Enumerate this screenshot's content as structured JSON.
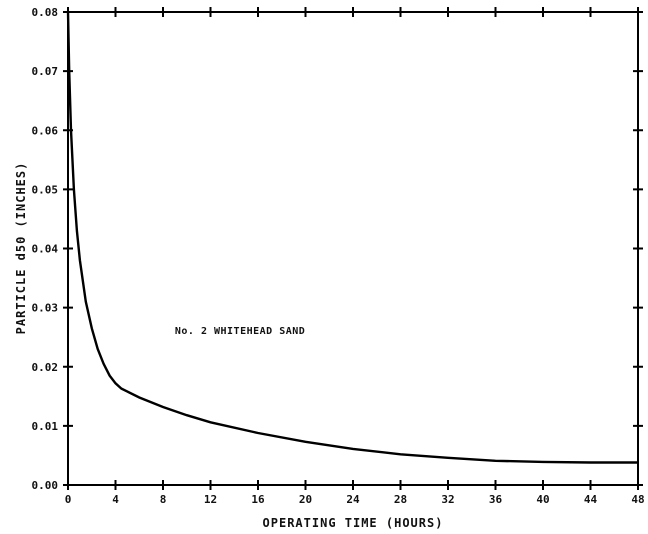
{
  "chart_data": {
    "type": "line",
    "title": "",
    "xlabel": "OPERATING TIME (HOURS)",
    "ylabel": "PARTICLE d50 (INCHES)",
    "xlim": [
      0,
      48
    ],
    "ylim": [
      0,
      0.08
    ],
    "x_ticks": [
      0,
      4,
      8,
      12,
      16,
      20,
      24,
      28,
      32,
      36,
      40,
      44,
      48
    ],
    "x_tick_labels": [
      "0",
      "4",
      "8",
      "12",
      "16",
      "20",
      "24",
      "28",
      "32",
      "36",
      "40",
      "44",
      "48"
    ],
    "y_ticks": [
      0,
      0.01,
      0.02,
      0.03,
      0.04,
      0.05,
      0.06,
      0.07,
      0.08
    ],
    "y_tick_labels": [
      "0.00",
      "0.01",
      "0.02",
      "0.03",
      "0.04",
      "0.05",
      "0.06",
      "0.07",
      "0.08"
    ],
    "grid": false,
    "line_color": "#000000",
    "series": [
      {
        "x": [
          0,
          0.1,
          0.25,
          0.5,
          0.75,
          1,
          1.5,
          2,
          2.5,
          3,
          3.5,
          4,
          4.5,
          5,
          6,
          8,
          10,
          12,
          16,
          20,
          24,
          28,
          32,
          36,
          40,
          44,
          48
        ],
        "y": [
          0.08,
          0.07,
          0.06,
          0.05,
          0.043,
          0.038,
          0.031,
          0.0265,
          0.023,
          0.0205,
          0.0185,
          0.0172,
          0.0163,
          0.0158,
          0.0148,
          0.0132,
          0.0118,
          0.0106,
          0.0088,
          0.0073,
          0.0061,
          0.0052,
          0.0046,
          0.0041,
          0.0039,
          0.0038,
          0.0038
        ]
      }
    ],
    "annotations": [
      {
        "text": "No. 2 WHITEHEAD SAND",
        "x": 9,
        "y": 0.0255
      }
    ]
  }
}
